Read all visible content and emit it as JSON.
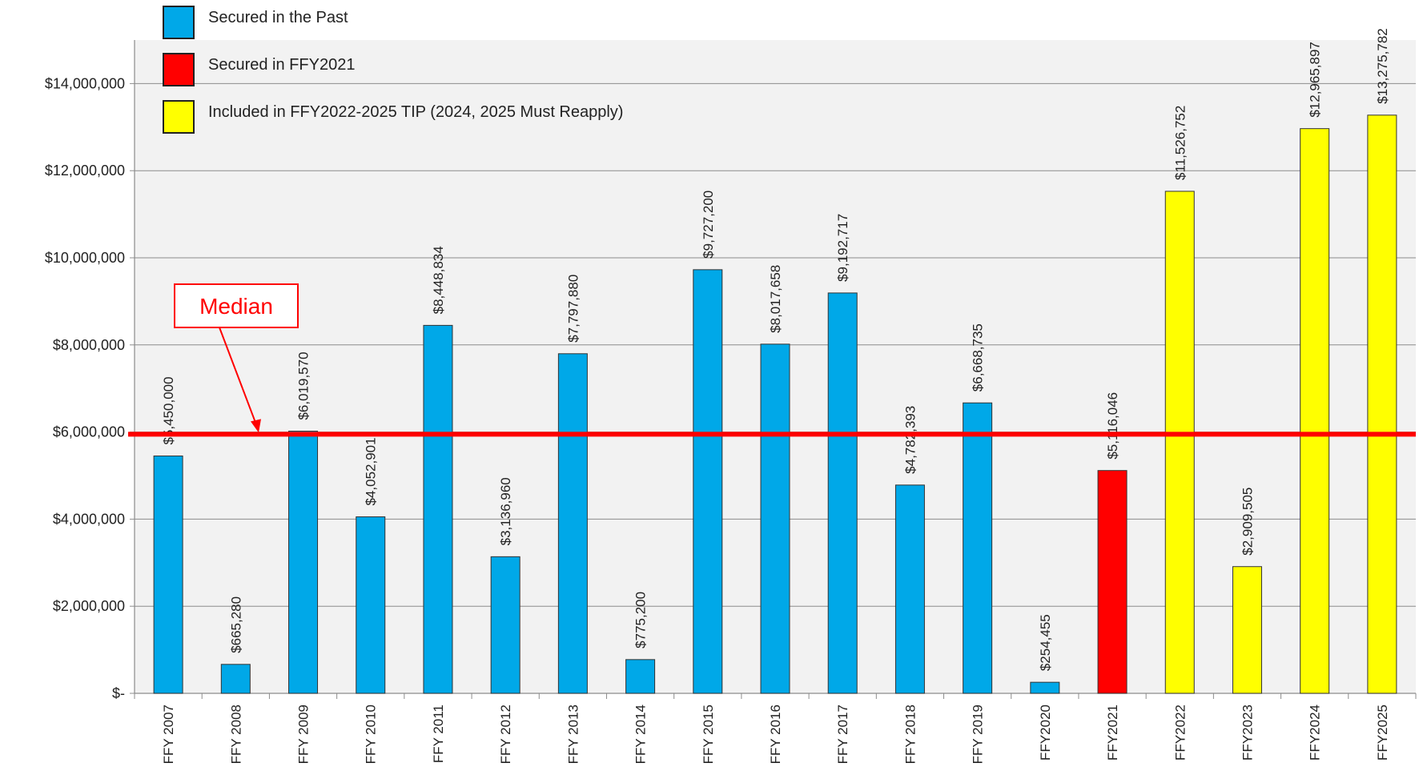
{
  "chart_data": {
    "type": "bar",
    "categories": [
      "FFY 2007",
      "FFY 2008",
      "FFY 2009",
      "FFY 2010",
      "FFY 2011",
      "FFY 2012",
      "FFY 2013",
      "FFY 2014",
      "FFY 2015",
      "FFY 2016",
      "FFY 2017",
      "FFY 2018",
      "FFY 2019",
      "FFY2020",
      "FFY2021",
      "FFY2022",
      "FFY2023",
      "FFY2024",
      "FFY2025"
    ],
    "values": [
      5450000,
      665280,
      6019570,
      4052901,
      8448834,
      3136960,
      7797880,
      775200,
      9727200,
      8017658,
      9192717,
      4782393,
      6668735,
      254455,
      5116046,
      11526752,
      2909505,
      12965897,
      13275782
    ],
    "data_labels": [
      "$5,450,000",
      "$665,280",
      "$6,019,570",
      "$4,052,901",
      "$8,448,834",
      "$3,136,960",
      "$7,797,880",
      "$775,200",
      "$9,727,200",
      "$8,017,658",
      "$9,192,717",
      "$4,782,393",
      "$6,668,735",
      "$254,455",
      "$5,116,046",
      "$11,526,752",
      "$2,909,505",
      "$12,965,897",
      "$13,275,782"
    ],
    "groups": [
      "past",
      "past",
      "past",
      "past",
      "past",
      "past",
      "past",
      "past",
      "past",
      "past",
      "past",
      "past",
      "past",
      "past",
      "ffy2021",
      "tip",
      "tip",
      "tip",
      "tip"
    ],
    "series": [
      {
        "key": "past",
        "name": "Secured in the Past",
        "color": "#00a8e8"
      },
      {
        "key": "ffy2021",
        "name": "Secured in FFY2021",
        "color": "#ff0000"
      },
      {
        "key": "tip",
        "name": "Included in FFY2022-2025 TIP (2024, 2025 Must Reapply)",
        "color": "#ffff00"
      }
    ],
    "yticks": [
      0,
      2000000,
      4000000,
      6000000,
      8000000,
      10000000,
      12000000,
      14000000
    ],
    "ytick_labels": [
      "$-",
      "$2,000,000",
      "$4,000,000",
      "$6,000,000",
      "$8,000,000",
      "$10,000,000",
      "$12,000,000",
      "$14,000,000"
    ],
    "ylim": [
      0,
      15000000
    ],
    "median": {
      "value": 5950000,
      "label": "Median",
      "color": "#ff0000"
    },
    "grid": true,
    "legend_position": "top-left",
    "title": "",
    "xlabel": "",
    "ylabel": ""
  }
}
